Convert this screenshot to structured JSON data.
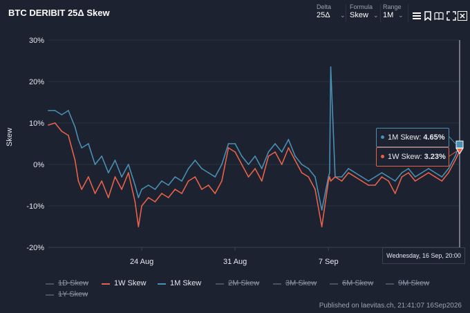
{
  "title": "BTC DERIBIT 25Δ Skew",
  "controls": {
    "delta": {
      "label": "Delta",
      "value": "25Δ"
    },
    "formula": {
      "label": "Formula",
      "value": "Skew"
    },
    "range": {
      "label": "Range",
      "value": "1M"
    }
  },
  "icons": [
    "menu-icon",
    "bookmark-icon",
    "book-icon",
    "fullscreen-icon",
    "close-icon"
  ],
  "colors": {
    "w1": "#e8624a",
    "m1": "#4a8fb4",
    "background": "#1c2230",
    "grid": "#2a3140"
  },
  "tooltip": {
    "m1_label": "1M Skew: ",
    "m1_value": "4.65%",
    "w1_label": "1W Skew: ",
    "w1_value": "3.23%",
    "date": "Wednesday, 16 Sep, 20:00"
  },
  "footer": "Published on laevitas.ch, 21:41:07 16Sep2026",
  "legend": [
    {
      "name": "1D Skew",
      "color": "#4a5160",
      "active": false
    },
    {
      "name": "1W Skew",
      "color": "#e8624a",
      "active": true
    },
    {
      "name": "1M Skew",
      "color": "#4a8fb4",
      "active": true
    },
    {
      "name": "2M Skew",
      "color": "#4a5160",
      "active": false
    },
    {
      "name": "3M Skew",
      "color": "#4a5160",
      "active": false
    },
    {
      "name": "6M Skew",
      "color": "#4a5160",
      "active": false
    },
    {
      "name": "9M Skew",
      "color": "#4a5160",
      "active": false
    },
    {
      "name": "1Y Skew",
      "color": "#4a5160",
      "active": false
    }
  ],
  "chart_data": {
    "type": "line",
    "ylabel": "Skew",
    "xlabel": "",
    "ylim": [
      -20,
      30
    ],
    "yticks": [
      "30%",
      "20%",
      "10%",
      "0%",
      "-10%",
      "-20%"
    ],
    "ytick_values": [
      30,
      20,
      10,
      0,
      -10,
      -20
    ],
    "xlim": [
      "2026-08-17",
      "2026-09-16 20:00"
    ],
    "xticks": [
      {
        "date": "2026-08-24",
        "label": "24 Aug"
      },
      {
        "date": "2026-08-31",
        "label": "31 Aug"
      },
      {
        "date": "2026-09-07",
        "label": "7 Sep"
      }
    ],
    "grid": true,
    "series": [
      {
        "name": "1W Skew",
        "color": "#e8624a",
        "x": [
          "2026-08-17",
          "2026-08-17 12:00",
          "2026-08-18",
          "2026-08-18 12:00",
          "2026-08-19",
          "2026-08-19 06:00",
          "2026-08-19 12:00",
          "2026-08-20",
          "2026-08-20 12:00",
          "2026-08-21",
          "2026-08-21 12:00",
          "2026-08-22",
          "2026-08-22 12:00",
          "2026-08-23",
          "2026-08-23 12:00",
          "2026-08-23 18:00",
          "2026-08-24",
          "2026-08-24 12:00",
          "2026-08-25",
          "2026-08-25 12:00",
          "2026-08-26",
          "2026-08-26 12:00",
          "2026-08-27",
          "2026-08-27 12:00",
          "2026-08-28",
          "2026-08-28 12:00",
          "2026-08-29",
          "2026-08-29 12:00",
          "2026-08-30",
          "2026-08-30 12:00",
          "2026-08-31",
          "2026-08-31 12:00",
          "2026-09-01",
          "2026-09-01 12:00",
          "2026-09-02",
          "2026-09-02 12:00",
          "2026-09-03",
          "2026-09-03 12:00",
          "2026-09-04",
          "2026-09-04 12:00",
          "2026-09-05",
          "2026-09-05 12:00",
          "2026-09-06",
          "2026-09-06 12:00",
          "2026-09-07",
          "2026-09-07 02:00",
          "2026-09-07 04:00",
          "2026-09-07 12:00",
          "2026-09-08",
          "2026-09-08 12:00",
          "2026-09-09",
          "2026-09-09 12:00",
          "2026-09-10",
          "2026-09-10 12:00",
          "2026-09-11",
          "2026-09-11 12:00",
          "2026-09-12",
          "2026-09-12 12:00",
          "2026-09-13",
          "2026-09-13 12:00",
          "2026-09-14",
          "2026-09-14 12:00",
          "2026-09-15",
          "2026-09-15 12:00",
          "2026-09-16",
          "2026-09-16 12:00",
          "2026-09-16 20:00"
        ],
        "y": [
          9.5,
          10,
          8,
          7,
          1,
          -4,
          -6,
          -3,
          -7,
          -4,
          -8,
          -3,
          -6,
          -2,
          -9,
          -15,
          -10,
          -8,
          -9,
          -7,
          -8,
          -6,
          -7,
          -4,
          -3,
          -6,
          -5,
          -7,
          -4,
          4,
          3,
          0,
          -3,
          -1,
          -4,
          2,
          3,
          0,
          4,
          1,
          -2,
          -3,
          -6,
          -15,
          -4,
          -3,
          -4,
          -3,
          -4,
          -2,
          -3,
          -4,
          -5,
          -5,
          -3,
          -4,
          -7,
          -3,
          -2,
          -4,
          -3,
          -2,
          -3,
          -4,
          -2,
          1,
          3.23
        ]
      },
      {
        "name": "1M Skew",
        "color": "#4a8fb4",
        "x": [
          "2026-08-17",
          "2026-08-17 12:00",
          "2026-08-18",
          "2026-08-18 12:00",
          "2026-08-19",
          "2026-08-19 06:00",
          "2026-08-19 12:00",
          "2026-08-20",
          "2026-08-20 12:00",
          "2026-08-21",
          "2026-08-21 12:00",
          "2026-08-22",
          "2026-08-22 12:00",
          "2026-08-23",
          "2026-08-23 12:00",
          "2026-08-23 18:00",
          "2026-08-24",
          "2026-08-24 12:00",
          "2026-08-25",
          "2026-08-25 12:00",
          "2026-08-26",
          "2026-08-26 12:00",
          "2026-08-27",
          "2026-08-27 12:00",
          "2026-08-28",
          "2026-08-28 12:00",
          "2026-08-29",
          "2026-08-29 12:00",
          "2026-08-30",
          "2026-08-30 12:00",
          "2026-08-31",
          "2026-08-31 12:00",
          "2026-09-01",
          "2026-09-01 12:00",
          "2026-09-02",
          "2026-09-02 12:00",
          "2026-09-03",
          "2026-09-03 12:00",
          "2026-09-04",
          "2026-09-04 12:00",
          "2026-09-05",
          "2026-09-05 12:00",
          "2026-09-06",
          "2026-09-06 12:00",
          "2026-09-07",
          "2026-09-07 02:00",
          "2026-09-07 04:00",
          "2026-09-07 12:00",
          "2026-09-08",
          "2026-09-08 12:00",
          "2026-09-09",
          "2026-09-09 12:00",
          "2026-09-10",
          "2026-09-10 12:00",
          "2026-09-11",
          "2026-09-11 12:00",
          "2026-09-12",
          "2026-09-12 12:00",
          "2026-09-13",
          "2026-09-13 12:00",
          "2026-09-14",
          "2026-09-14 12:00",
          "2026-09-15",
          "2026-09-15 12:00",
          "2026-09-16",
          "2026-09-16 12:00",
          "2026-09-16 20:00"
        ],
        "y": [
          13,
          13,
          12,
          13,
          9,
          6,
          4,
          5,
          0,
          2,
          -2,
          1,
          -3,
          0,
          -5,
          -8,
          -6,
          -5,
          -6,
          -4,
          -5,
          -3,
          -4,
          -1,
          1,
          -1,
          -2,
          -3,
          0,
          5,
          5,
          2,
          0,
          2,
          -1,
          3,
          5,
          3,
          6,
          2,
          0,
          -1,
          -3,
          -11,
          -3,
          -2,
          23.5,
          -3,
          -3,
          -1,
          -2,
          -3,
          -4,
          -3,
          -2,
          -3,
          -4,
          -2,
          -1,
          -3,
          -2,
          -1,
          -2,
          -3,
          -1,
          2,
          4.65
        ]
      }
    ]
  }
}
